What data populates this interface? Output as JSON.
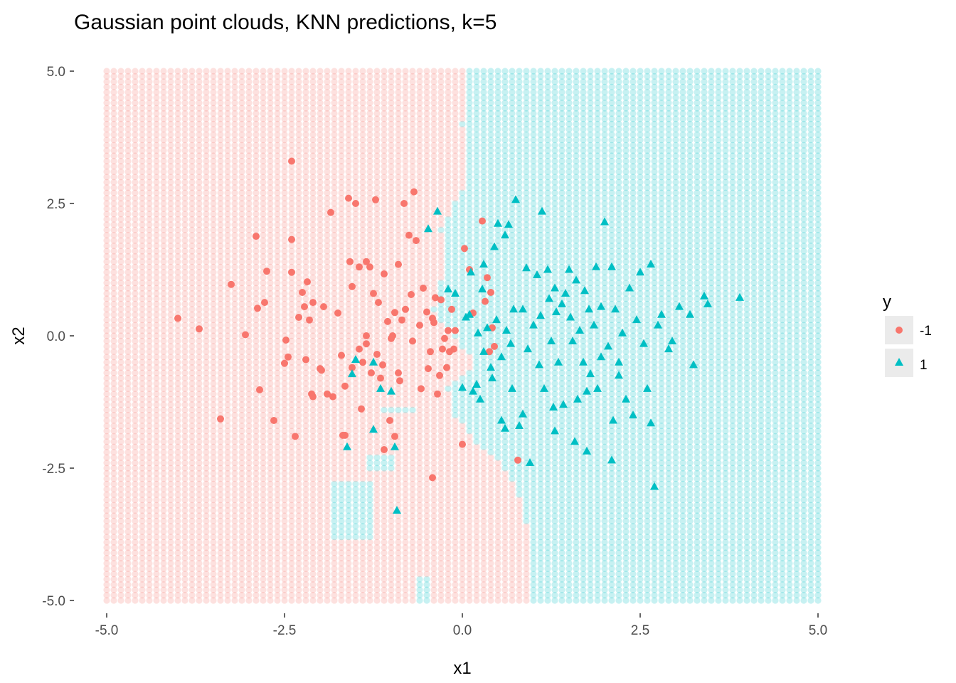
{
  "chart_data": {
    "type": "scatter",
    "title": "Gaussian point clouds, KNN predictions, k=5",
    "xlabel": "x1",
    "ylabel": "x2",
    "xlim": [
      -5,
      5
    ],
    "ylim": [
      -5,
      5
    ],
    "xticks": [
      "-5.0",
      "-2.5",
      "0.0",
      "2.5",
      "5.0"
    ],
    "yticks": [
      "5.0",
      "2.5",
      "0.0",
      "-2.5",
      "-5.0"
    ],
    "grid": false,
    "legend": {
      "title": "y",
      "position": "right",
      "entries": [
        {
          "label": "-1",
          "shape": "circle",
          "color": "#F8766D"
        },
        {
          "label": "1",
          "shape": "triangle",
          "color": "#00BFC4"
        }
      ]
    },
    "background_grid": {
      "description_of_regions": "predicted class per grid cell",
      "step": 0.1,
      "boundary_x_by_y": [
        [
          5.0,
          0.1
        ],
        [
          4.0,
          0.0
        ],
        [
          3.0,
          0.1
        ],
        [
          2.5,
          -0.1
        ],
        [
          2.0,
          -0.3
        ],
        [
          1.5,
          -0.2
        ],
        [
          1.0,
          -0.3
        ],
        [
          0.5,
          -0.4
        ],
        [
          0.0,
          -0.15
        ],
        [
          -0.5,
          0.2
        ],
        [
          -1.0,
          -0.2
        ],
        [
          -1.5,
          -0.1
        ],
        [
          -2.0,
          0.2
        ],
        [
          -2.5,
          0.6
        ],
        [
          -3.0,
          0.8
        ],
        [
          -3.5,
          0.9
        ],
        [
          -4.0,
          1.0
        ],
        [
          -5.0,
          1.0
        ]
      ],
      "islands_positive": [
        {
          "x": [
            -1.3,
            -1.0
          ],
          "y": [
            -2.2,
            -2.5
          ]
        },
        {
          "x": [
            -1.8,
            -1.2
          ],
          "y": [
            -2.7,
            -3.8
          ]
        },
        {
          "x": [
            -0.6,
            -0.4
          ],
          "y": [
            -4.6,
            -5.0
          ]
        },
        {
          "x": [
            -1.1,
            -0.7
          ],
          "y": [
            -1.3,
            -1.4
          ]
        }
      ]
    },
    "series": [
      {
        "name": "-1",
        "values": [
          [
            -4.0,
            0.33
          ],
          [
            -3.7,
            0.13
          ],
          [
            -3.4,
            -1.57
          ],
          [
            -3.25,
            0.97
          ],
          [
            -3.05,
            0.02
          ],
          [
            -2.9,
            1.88
          ],
          [
            -2.88,
            0.52
          ],
          [
            -2.85,
            -1.02
          ],
          [
            -2.75,
            1.22
          ],
          [
            -2.78,
            0.63
          ],
          [
            -2.65,
            -1.6
          ],
          [
            -2.5,
            -0.52
          ],
          [
            -2.48,
            -0.08
          ],
          [
            -2.45,
            -0.4
          ],
          [
            -2.4,
            1.82
          ],
          [
            -2.4,
            1.2
          ],
          [
            -2.35,
            -1.9
          ],
          [
            -2.3,
            0.35
          ],
          [
            -2.25,
            0.82
          ],
          [
            -2.22,
            0.55
          ],
          [
            -2.2,
            -0.45
          ],
          [
            -2.18,
            1.02
          ],
          [
            -2.15,
            0.3
          ],
          [
            -2.12,
            -1.1
          ],
          [
            -2.1,
            -1.15
          ],
          [
            -2.1,
            0.63
          ],
          [
            -2.0,
            -0.62
          ],
          [
            -1.98,
            -0.65
          ],
          [
            -1.95,
            0.55
          ],
          [
            -1.9,
            -1.1
          ],
          [
            -1.85,
            2.33
          ],
          [
            -1.82,
            -1.15
          ],
          [
            -1.75,
            0.43
          ],
          [
            -1.7,
            -0.37
          ],
          [
            -1.65,
            -1.88
          ],
          [
            -1.6,
            2.6
          ],
          [
            -1.55,
            0.93
          ],
          [
            -1.5,
            2.5
          ],
          [
            -1.45,
            1.3
          ],
          [
            -1.4,
            -0.5
          ],
          [
            -1.35,
            1.4
          ],
          [
            -1.3,
            1.3
          ],
          [
            -1.25,
            0.8
          ],
          [
            -1.22,
            2.57
          ],
          [
            -1.2,
            -0.35
          ],
          [
            -1.18,
            0.63
          ],
          [
            -1.15,
            -0.8
          ],
          [
            -1.1,
            1.17
          ],
          [
            -1.05,
            0.27
          ],
          [
            -1.0,
            -0.05
          ],
          [
            -0.95,
            0.44
          ],
          [
            -0.9,
            -0.7
          ],
          [
            -0.85,
            0.3
          ],
          [
            -0.8,
            0.5
          ],
          [
            -0.75,
            1.9
          ],
          [
            -0.72,
            0.78
          ],
          [
            -0.7,
            -0.1
          ],
          [
            -0.65,
            1.8
          ],
          [
            -0.6,
            0.2
          ],
          [
            -0.55,
            0.9
          ],
          [
            -0.5,
            0.45
          ],
          [
            -0.45,
            -0.3
          ],
          [
            -0.4,
            0.25
          ],
          [
            -0.35,
            -1.1
          ],
          [
            -0.3,
            0.68
          ],
          [
            -0.25,
            -0.05
          ],
          [
            -0.2,
            0.1
          ],
          [
            -0.15,
            0.5
          ],
          [
            -0.12,
            -0.25
          ],
          [
            -0.1,
            0.1
          ],
          [
            -1.65,
            -0.95
          ],
          [
            -1.55,
            -0.6
          ],
          [
            -1.45,
            -0.25
          ],
          [
            -1.35,
            0.0
          ],
          [
            -1.28,
            -0.7
          ],
          [
            -1.12,
            -0.55
          ],
          [
            -1.02,
            -1.6
          ],
          [
            -0.98,
            0.0
          ],
          [
            -0.88,
            -0.85
          ],
          [
            -0.82,
            2.5
          ],
          [
            -0.68,
            2.72
          ],
          [
            -0.58,
            -1.0
          ],
          [
            -0.48,
            -0.62
          ],
          [
            -0.42,
            -2.68
          ],
          [
            -0.38,
            0.72
          ],
          [
            -0.32,
            -0.75
          ],
          [
            -0.28,
            -0.25
          ],
          [
            -0.22,
            -0.6
          ],
          [
            -0.18,
            -0.3
          ],
          [
            0.0,
            -2.05
          ],
          [
            0.03,
            1.65
          ],
          [
            0.1,
            1.25
          ],
          [
            0.15,
            0.43
          ],
          [
            0.28,
            2.17
          ],
          [
            0.32,
            0.65
          ],
          [
            0.38,
            -0.3
          ],
          [
            0.4,
            0.82
          ],
          [
            0.42,
            0.15
          ],
          [
            0.45,
            -0.2
          ],
          [
            0.78,
            -2.35
          ],
          [
            -2.4,
            3.3
          ],
          [
            -1.58,
            1.4
          ],
          [
            -1.35,
            -0.15
          ],
          [
            -1.42,
            -1.38
          ],
          [
            -1.1,
            -2.15
          ],
          [
            -0.95,
            -1.9
          ],
          [
            -1.68,
            -1.88
          ],
          [
            -0.42,
            0.33
          ],
          [
            -0.9,
            1.35
          ],
          [
            0.35,
            1.1
          ]
        ]
      },
      {
        "name": "1",
        "values": [
          [
            -0.35,
            2.35
          ],
          [
            -0.48,
            2.02
          ],
          [
            -1.55,
            -0.72
          ],
          [
            -1.5,
            -0.45
          ],
          [
            -1.25,
            -0.5
          ],
          [
            -1.25,
            -1.77
          ],
          [
            -1.15,
            -1.0
          ],
          [
            -1.0,
            -1.05
          ],
          [
            -0.95,
            -2.1
          ],
          [
            -0.92,
            -3.3
          ],
          [
            -1.62,
            -2.1
          ],
          [
            -0.1,
            0.8
          ],
          [
            -0.2,
            0.88
          ],
          [
            0.0,
            -0.98
          ],
          [
            0.05,
            0.35
          ],
          [
            0.1,
            0.4
          ],
          [
            0.12,
            1.2
          ],
          [
            0.15,
            -1.05
          ],
          [
            0.2,
            -0.92
          ],
          [
            0.22,
            0.05
          ],
          [
            0.25,
            -1.2
          ],
          [
            0.28,
            0.88
          ],
          [
            0.3,
            1.35
          ],
          [
            0.35,
            0.15
          ],
          [
            0.4,
            -0.6
          ],
          [
            0.42,
            -0.8
          ],
          [
            0.45,
            1.68
          ],
          [
            0.48,
            0.3
          ],
          [
            0.5,
            2.12
          ],
          [
            0.55,
            -1.6
          ],
          [
            0.6,
            1.9
          ],
          [
            0.62,
            0.1
          ],
          [
            0.65,
            2.1
          ],
          [
            0.68,
            -0.15
          ],
          [
            0.7,
            -1.0
          ],
          [
            0.72,
            0.5
          ],
          [
            0.75,
            2.57
          ],
          [
            0.8,
            -1.7
          ],
          [
            0.85,
            0.5
          ],
          [
            0.9,
            1.28
          ],
          [
            0.92,
            -0.25
          ],
          [
            0.95,
            -2.4
          ],
          [
            1.0,
            0.2
          ],
          [
            1.05,
            1.15
          ],
          [
            1.08,
            -0.55
          ],
          [
            1.1,
            0.38
          ],
          [
            1.12,
            2.35
          ],
          [
            1.15,
            -1.0
          ],
          [
            1.2,
            1.25
          ],
          [
            1.22,
            0.7
          ],
          [
            1.25,
            -0.1
          ],
          [
            1.28,
            -1.35
          ],
          [
            1.3,
            0.9
          ],
          [
            1.32,
            0.45
          ],
          [
            1.35,
            -0.5
          ],
          [
            1.4,
            0.6
          ],
          [
            1.42,
            -1.3
          ],
          [
            1.45,
            0.8
          ],
          [
            1.5,
            1.25
          ],
          [
            1.52,
            0.35
          ],
          [
            1.55,
            -0.1
          ],
          [
            1.58,
            -2.0
          ],
          [
            1.6,
            1.05
          ],
          [
            1.62,
            -1.2
          ],
          [
            1.65,
            0.1
          ],
          [
            1.7,
            -0.5
          ],
          [
            1.72,
            0.85
          ],
          [
            1.75,
            -2.18
          ],
          [
            1.78,
            0.5
          ],
          [
            1.8,
            -0.72
          ],
          [
            1.85,
            0.2
          ],
          [
            1.88,
            1.3
          ],
          [
            1.9,
            -1.0
          ],
          [
            1.95,
            0.55
          ],
          [
            2.0,
            2.15
          ],
          [
            2.05,
            -0.2
          ],
          [
            2.1,
            1.3
          ],
          [
            2.12,
            -1.6
          ],
          [
            2.15,
            0.5
          ],
          [
            2.2,
            -0.75
          ],
          [
            2.25,
            0.05
          ],
          [
            2.3,
            -1.2
          ],
          [
            2.35,
            0.9
          ],
          [
            2.4,
            -1.5
          ],
          [
            2.45,
            0.3
          ],
          [
            2.5,
            1.2
          ],
          [
            2.55,
            -0.15
          ],
          [
            2.6,
            -1.0
          ],
          [
            2.65,
            1.35
          ],
          [
            2.7,
            -2.85
          ],
          [
            2.75,
            0.2
          ],
          [
            2.8,
            0.4
          ],
          [
            2.9,
            -0.25
          ],
          [
            2.95,
            -0.1
          ],
          [
            3.05,
            0.55
          ],
          [
            3.2,
            0.4
          ],
          [
            3.25,
            -0.55
          ],
          [
            3.4,
            0.75
          ],
          [
            3.45,
            0.6
          ],
          [
            3.9,
            0.72
          ],
          [
            2.1,
            -2.35
          ],
          [
            2.65,
            -1.65
          ],
          [
            2.2,
            -0.5
          ],
          [
            1.95,
            -0.4
          ],
          [
            1.3,
            -1.8
          ],
          [
            0.85,
            -1.48
          ],
          [
            0.6,
            -1.75
          ],
          [
            0.3,
            -0.3
          ],
          [
            0.55,
            -0.4
          ],
          [
            1.75,
            -1.05
          ]
        ]
      }
    ]
  }
}
